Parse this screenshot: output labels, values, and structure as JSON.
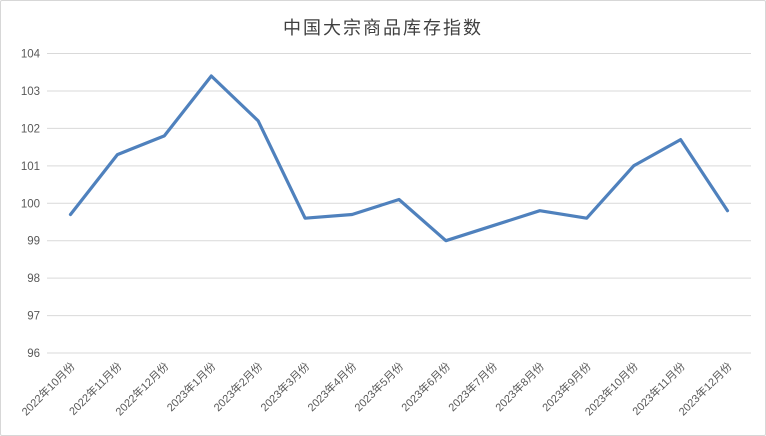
{
  "chart_data": {
    "type": "line",
    "title": "中国大宗商品库存指数",
    "categories": [
      "2022年10月份",
      "2022年11月份",
      "2022年12月份",
      "2023年1月份",
      "2023年2月份",
      "2023年3月份",
      "2023年4月份",
      "2023年5月份",
      "2023年6月份",
      "2023年7月份",
      "2023年8月份",
      "2023年9月份",
      "2023年10月份",
      "2023年11月份",
      "2023年12月份"
    ],
    "values": [
      99.7,
      101.3,
      101.8,
      103.4,
      102.2,
      99.6,
      99.7,
      100.1,
      99.0,
      99.4,
      99.8,
      99.6,
      101.0,
      101.7,
      99.8
    ],
    "xlabel": "",
    "ylabel": "",
    "ylim": [
      96,
      104
    ],
    "ytick_interval": 1,
    "ytick_labels": [
      "96",
      "97",
      "98",
      "99",
      "100",
      "101",
      "102",
      "103",
      "104"
    ],
    "grid": "horizontal",
    "legend": "none",
    "colors": {
      "line": "#4f81bd",
      "gridline": "#d9d9d9",
      "tick_label": "#595959",
      "title": "#3f3f3f",
      "frame_border": "#d7d7d7",
      "background": "#ffffff"
    }
  }
}
